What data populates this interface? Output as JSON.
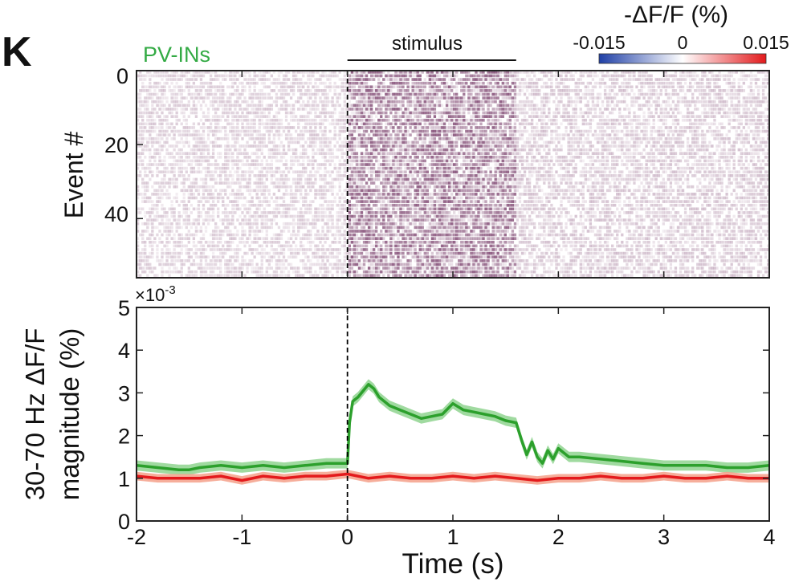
{
  "panel_label": "K",
  "cell_type_label": "PV-INs",
  "colors": {
    "cell_type_label": "#33aa44",
    "green_trace": "#2ca02c",
    "green_band": "#8fd48f",
    "red_trace": "#e41a1c",
    "red_band": "#f4a08a",
    "heatmap_positive": "#6b2a5b",
    "colorbar_low": "#1f3fa6",
    "colorbar_high": "#e31a1c"
  },
  "stimulus_label": "stimulus",
  "colorbar": {
    "title": "-ΔF/F (%)",
    "tick_labels": [
      "-0.015",
      "0",
      "0.015"
    ],
    "range": [
      -0.015,
      0.015
    ]
  },
  "chart_data": [
    {
      "type": "heatmap",
      "ylabel": "Event #",
      "y_tick_labels": [
        "0",
        "20",
        "40"
      ],
      "ylim": [
        0,
        56
      ],
      "xlim": [
        -2,
        4
      ],
      "stimulus_window": [
        0,
        1.6
      ],
      "event_count": 56,
      "mean_intensity_by_period": {
        "pre": 0.15,
        "stimulus": 0.45,
        "post": 0.17
      }
    },
    {
      "type": "line",
      "ylabel_line1": "30-70 Hz ΔF/F",
      "ylabel_line2": "magnitude (%)",
      "xlabel": "Time (s)",
      "y_exponent_label": "×10",
      "y_exponent_power": "-3",
      "x_tick_labels": [
        "-2",
        "-1",
        "0",
        "1",
        "2",
        "3",
        "4"
      ],
      "y_tick_labels": [
        "0",
        "1",
        "2",
        "3",
        "4",
        "5"
      ],
      "xlim": [
        -2,
        4
      ],
      "ylim": [
        0,
        5
      ],
      "stimulus_onset": 0,
      "series": [
        {
          "color_key": "green",
          "x": [
            -2.0,
            -1.8,
            -1.6,
            -1.5,
            -1.4,
            -1.2,
            -1.0,
            -0.8,
            -0.6,
            -0.4,
            -0.2,
            0.0,
            0.02,
            0.05,
            0.1,
            0.2,
            0.25,
            0.3,
            0.4,
            0.5,
            0.6,
            0.7,
            0.8,
            0.9,
            1.0,
            1.1,
            1.2,
            1.3,
            1.4,
            1.5,
            1.6,
            1.65,
            1.7,
            1.75,
            1.8,
            1.85,
            1.9,
            1.95,
            2.0,
            2.1,
            2.2,
            2.4,
            2.6,
            2.8,
            3.0,
            3.2,
            3.4,
            3.6,
            3.8,
            4.0
          ],
          "y": [
            1.3,
            1.25,
            1.2,
            1.2,
            1.25,
            1.3,
            1.25,
            1.3,
            1.25,
            1.3,
            1.35,
            1.35,
            2.3,
            2.8,
            2.9,
            3.2,
            3.1,
            2.9,
            2.7,
            2.6,
            2.5,
            2.4,
            2.45,
            2.5,
            2.75,
            2.6,
            2.55,
            2.5,
            2.45,
            2.35,
            2.3,
            1.9,
            1.55,
            1.85,
            1.5,
            1.35,
            1.65,
            1.45,
            1.7,
            1.5,
            1.5,
            1.45,
            1.4,
            1.35,
            1.3,
            1.3,
            1.3,
            1.25,
            1.25,
            1.3
          ],
          "ci_halfwidth": 0.12
        },
        {
          "color_key": "red",
          "x": [
            -2.0,
            -1.8,
            -1.6,
            -1.4,
            -1.2,
            -1.0,
            -0.8,
            -0.6,
            -0.4,
            -0.2,
            0.0,
            0.2,
            0.4,
            0.6,
            0.8,
            1.0,
            1.2,
            1.4,
            1.6,
            1.8,
            2.0,
            2.2,
            2.4,
            2.6,
            2.8,
            3.0,
            3.2,
            3.4,
            3.6,
            3.8,
            4.0
          ],
          "y": [
            1.05,
            1.0,
            1.0,
            1.0,
            1.05,
            0.95,
            1.05,
            1.0,
            1.05,
            1.05,
            1.1,
            1.0,
            1.05,
            1.0,
            1.0,
            1.05,
            1.0,
            1.05,
            1.0,
            0.95,
            1.0,
            1.0,
            1.05,
            1.0,
            1.0,
            1.05,
            1.0,
            1.0,
            1.05,
            1.0,
            1.0
          ],
          "ci_halfwidth": 0.1
        }
      ]
    }
  ]
}
